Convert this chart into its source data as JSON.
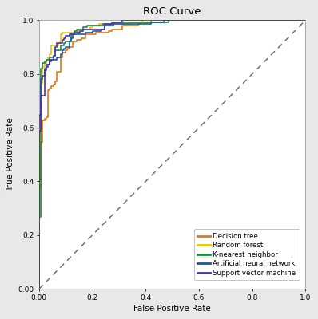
{
  "title": "ROC Curve",
  "xlabel": "False Positive Rate",
  "ylabel": "True Positive Rate",
  "xlim": [
    0.0,
    1.0
  ],
  "ylim": [
    0.0,
    1.0
  ],
  "xticks": [
    0.0,
    0.2,
    0.4,
    0.6,
    0.8,
    1.0
  ],
  "yticks": [
    0.0,
    0.2,
    0.4,
    0.6,
    0.8,
    1.0
  ],
  "xtick_labels": [
    "0.00",
    "0.2",
    "0.4",
    "0.6",
    "0.8",
    "1.0"
  ],
  "ytick_labels": [
    "0.00",
    "0.2",
    "0.4",
    "0.6",
    "0.8",
    "1.0"
  ],
  "background_color": "#ffffff",
  "fig_background": "#e8e8e8",
  "curves": [
    {
      "name": "Decision tree",
      "color": "#e07818",
      "lw": 1.2,
      "auc": 0.8,
      "seed": 101
    },
    {
      "name": "Random forest",
      "color": "#e8c010",
      "lw": 1.2,
      "auc": 0.87,
      "seed": 202
    },
    {
      "name": "K-nearest neighbor",
      "color": "#208840",
      "lw": 1.2,
      "auc": 0.85,
      "seed": 303
    },
    {
      "name": "Artificial neural network",
      "color": "#1858a0",
      "lw": 1.2,
      "auc": 0.93,
      "seed": 404
    },
    {
      "name": "Support vector machine",
      "color": "#5030b0",
      "lw": 1.2,
      "auc": 0.95,
      "seed": 505
    }
  ],
  "diagonal_color": "#666666",
  "diagonal_lw": 1.0,
  "legend_fontsize": 6.2,
  "title_fontsize": 9.5,
  "axis_label_fontsize": 7.5,
  "tick_fontsize": 6.5
}
